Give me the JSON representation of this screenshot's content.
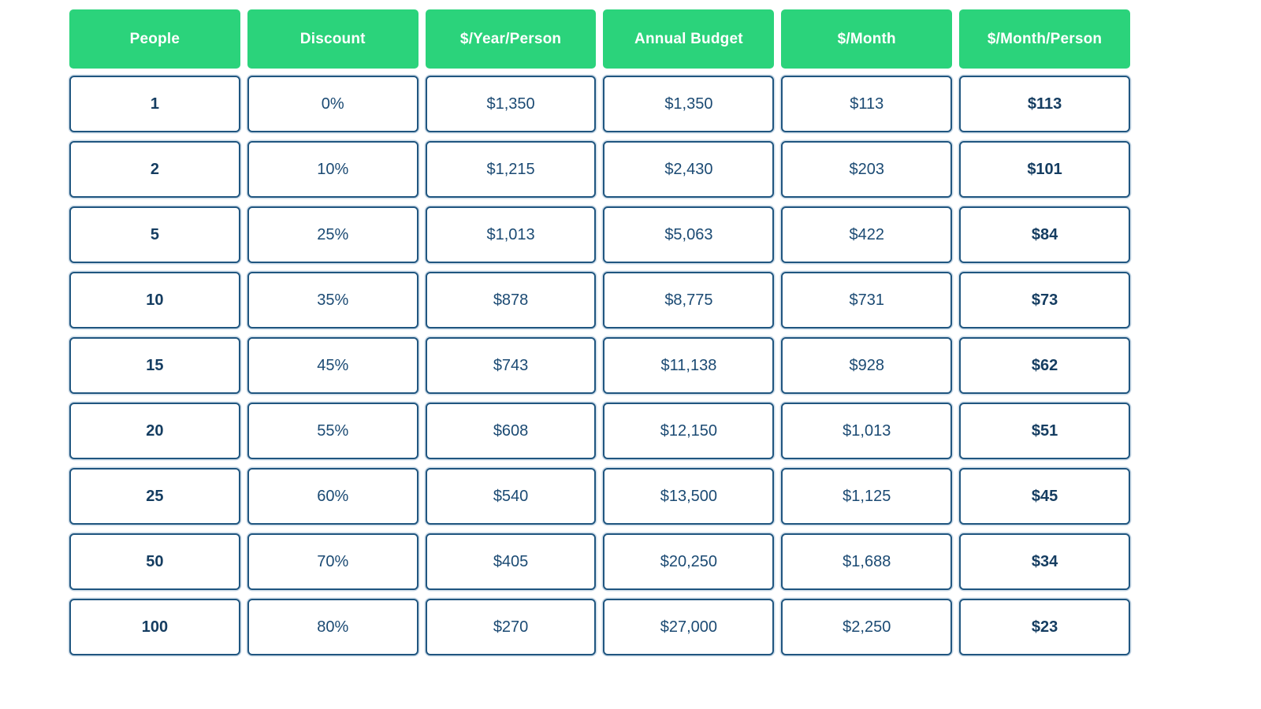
{
  "colors": {
    "header_green": "#2bd37b",
    "cell_border_navy": "#205680",
    "text_navy": "#1b4a73",
    "text_navy_bold": "#153d61",
    "background": "#ffffff"
  },
  "chart_data": {
    "type": "table",
    "columns": [
      "People",
      "Discount",
      "$/Year/Person",
      "Annual Budget",
      "$/Month",
      "$/Month/Person"
    ],
    "bold_columns": [
      0,
      5
    ],
    "rows": [
      [
        "1",
        "0%",
        "$1,350",
        "$1,350",
        "$113",
        "$113"
      ],
      [
        "2",
        "10%",
        "$1,215",
        "$2,430",
        "$203",
        "$101"
      ],
      [
        "5",
        "25%",
        "$1,013",
        "$5,063",
        "$422",
        "$84"
      ],
      [
        "10",
        "35%",
        "$878",
        "$8,775",
        "$731",
        "$73"
      ],
      [
        "15",
        "45%",
        "$743",
        "$11,138",
        "$928",
        "$62"
      ],
      [
        "20",
        "55%",
        "$608",
        "$12,150",
        "$1,013",
        "$51"
      ],
      [
        "25",
        "60%",
        "$540",
        "$13,500",
        "$1,125",
        "$45"
      ],
      [
        "50",
        "70%",
        "$405",
        "$20,250",
        "$1,688",
        "$34"
      ],
      [
        "100",
        "80%",
        "$270",
        "$27,000",
        "$2,250",
        "$23"
      ]
    ]
  }
}
